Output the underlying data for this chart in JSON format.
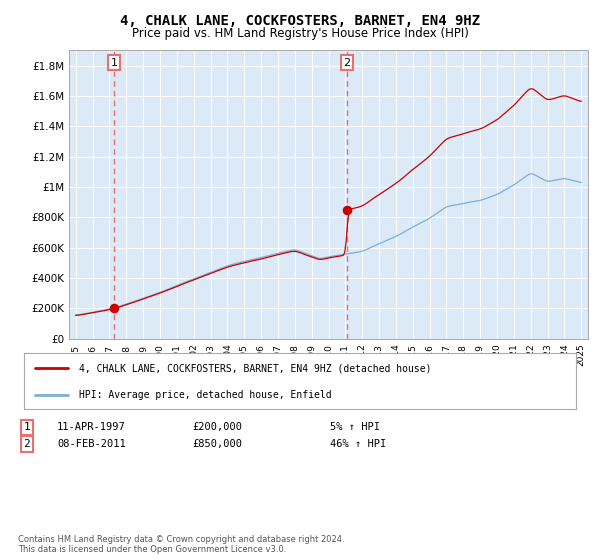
{
  "title": "4, CHALK LANE, COCKFOSTERS, BARNET, EN4 9HZ",
  "subtitle": "Price paid vs. HM Land Registry's House Price Index (HPI)",
  "title_fontsize": 10,
  "subtitle_fontsize": 8.5,
  "background_color": "#dce9f7",
  "ylim": [
    0,
    1900000
  ],
  "yticks": [
    0,
    200000,
    400000,
    600000,
    800000,
    1000000,
    1200000,
    1400000,
    1600000,
    1800000
  ],
  "ytick_labels": [
    "£0",
    "£200K",
    "£400K",
    "£600K",
    "£800K",
    "£1M",
    "£1.2M",
    "£1.4M",
    "£1.6M",
    "£1.8M"
  ],
  "purchase1_date": 1997.28,
  "purchase1_price": 200000,
  "purchase2_date": 2011.1,
  "purchase2_price": 850000,
  "legend_label_red": "4, CHALK LANE, COCKFOSTERS, BARNET, EN4 9HZ (detached house)",
  "legend_label_blue": "HPI: Average price, detached house, Enfield",
  "note1_num": "1",
  "note1_date": "11-APR-1997",
  "note1_price": "£200,000",
  "note1_hpi": "5% ↑ HPI",
  "note2_num": "2",
  "note2_date": "08-FEB-2011",
  "note2_price": "£850,000",
  "note2_hpi": "46% ↑ HPI",
  "footer": "Contains HM Land Registry data © Crown copyright and database right 2024.\nThis data is licensed under the Open Government Licence v3.0.",
  "red_color": "#cc0000",
  "blue_color": "#7ab0d4",
  "dashed_red": "#e87070",
  "grid_color": "#ffffff"
}
